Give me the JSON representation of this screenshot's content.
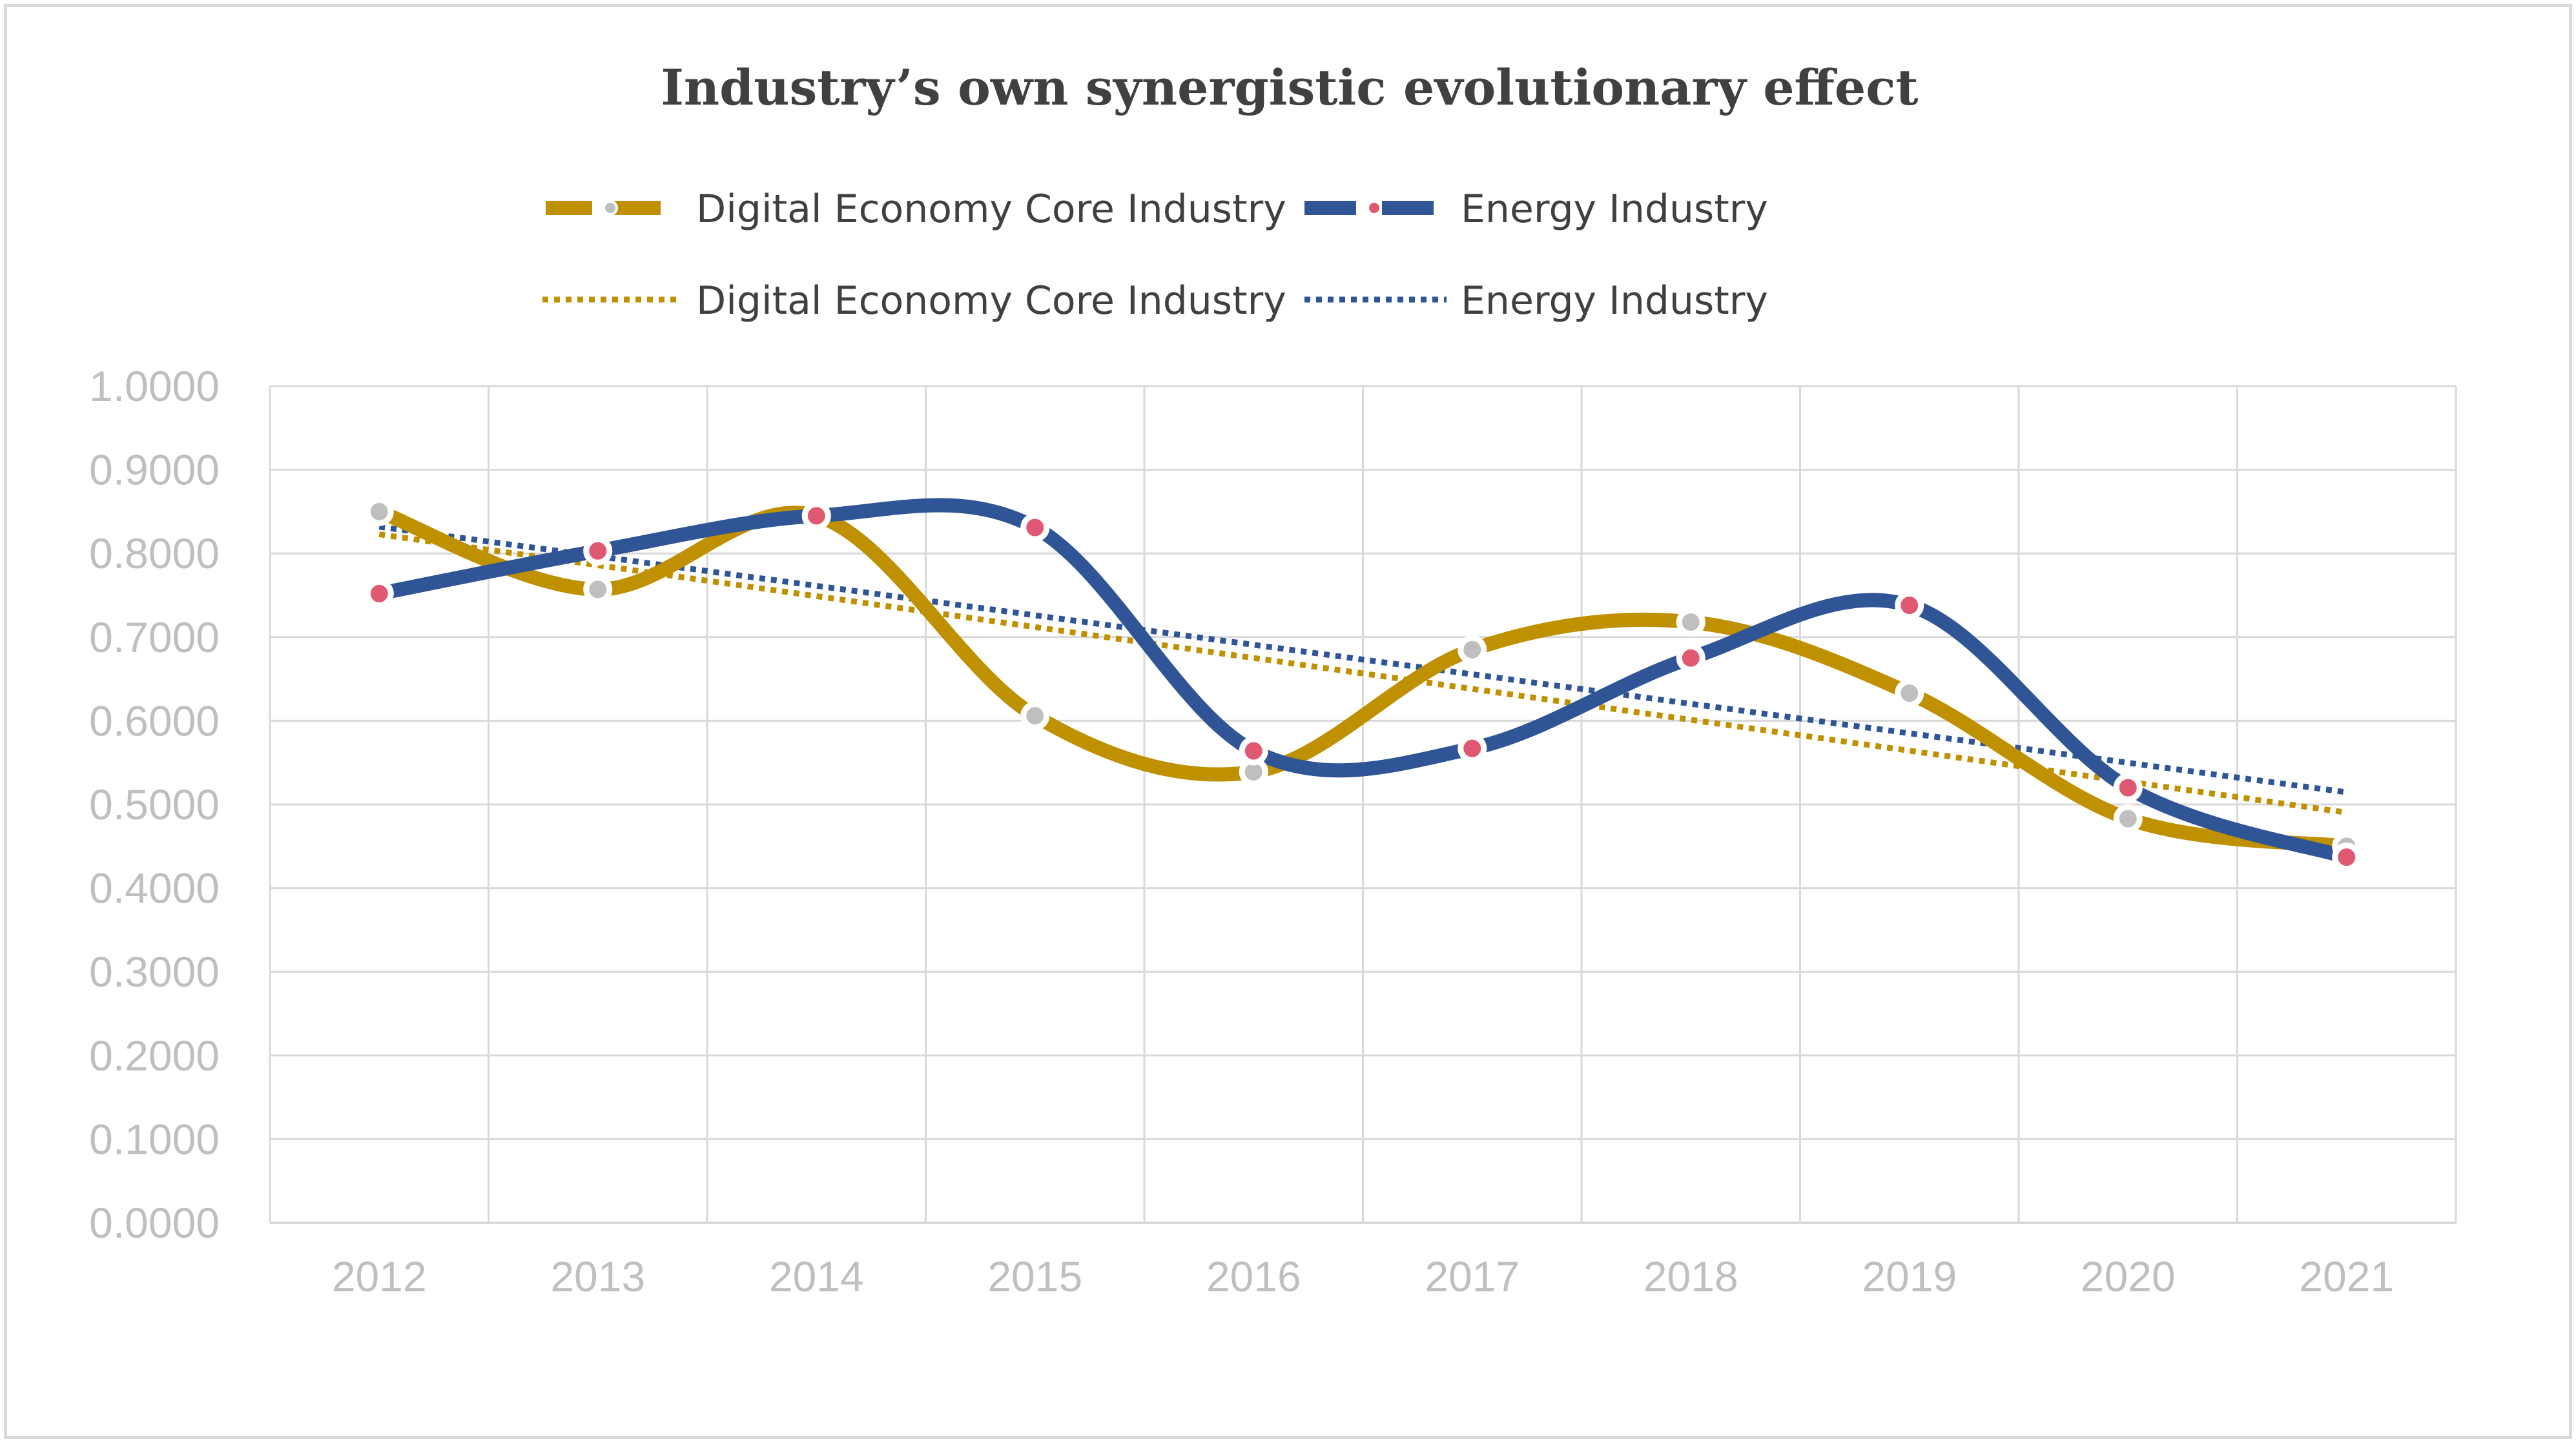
{
  "chart_data": {
    "type": "line",
    "title": "Industry’s own synergistic evolutionary effect",
    "xlabel": "",
    "ylabel": "",
    "categories": [
      "2012",
      "2013",
      "2014",
      "2015",
      "2016",
      "2017",
      "2018",
      "2019",
      "2020",
      "2021"
    ],
    "ylim": [
      0,
      1
    ],
    "yticks": [
      "0.0000",
      "0.1000",
      "0.2000",
      "0.3000",
      "0.4000",
      "0.5000",
      "0.6000",
      "0.7000",
      "0.8000",
      "0.9000",
      "1.0000"
    ],
    "grid": true,
    "legend_position": "top",
    "series": [
      {
        "name": "Digital Economy Core Industry",
        "values": [
          0.85,
          0.757,
          0.845,
          0.606,
          0.539,
          0.685,
          0.718,
          0.633,
          0.483,
          0.45
        ],
        "line_color": "#bf9000",
        "marker_color": "#bfbfbf",
        "smooth": true
      },
      {
        "name": "Energy Industry",
        "values": [
          0.752,
          0.803,
          0.845,
          0.831,
          0.564,
          0.567,
          0.675,
          0.738,
          0.52,
          0.437
        ],
        "line_color": "#2f5597",
        "marker_color": "#e15873",
        "smooth": true
      }
    ],
    "trendlines": [
      {
        "name": "Digital Economy Core Industry",
        "type": "linear",
        "color": "#bf9000",
        "dotted": true
      },
      {
        "name": "Energy Industry",
        "type": "linear",
        "color": "#2f5597",
        "dotted": true
      }
    ]
  }
}
